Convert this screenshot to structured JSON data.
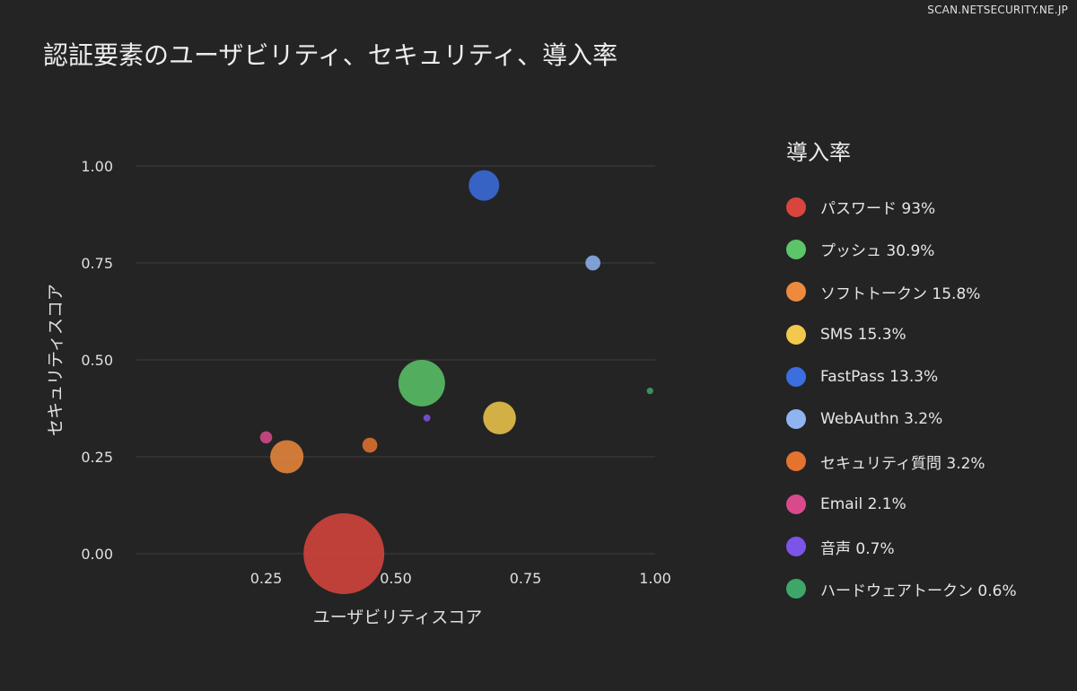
{
  "watermark": "SCAN.NETSECURITY.NE.JP",
  "chart_data": {
    "type": "scatter",
    "title": "認証要素のユーザビリティ、セキュリティ、導入率",
    "xlabel": "ユーザビリティスコア",
    "ylabel": "セキュリティスコア",
    "xlim": [
      0,
      1.0
    ],
    "ylim": [
      0,
      1.1
    ],
    "xticks": [
      "0.25",
      "0.50",
      "0.75",
      "1.00"
    ],
    "xtick_values": [
      0.25,
      0.5,
      0.75,
      1.0
    ],
    "yticks": [
      "0.00",
      "0.25",
      "0.50",
      "0.75",
      "1.00"
    ],
    "ytick_values": [
      0,
      0.25,
      0.5,
      0.75,
      1.0
    ],
    "grid": "horizontal",
    "legend_title": "導入率",
    "legend_position": "right",
    "series": [
      {
        "name": "パスワード",
        "label": "パスワード 93%",
        "adoption": 93,
        "x": 0.4,
        "y": 0.0,
        "color": "#d9453d"
      },
      {
        "name": "プッシュ",
        "label": "プッシュ 30.9%",
        "adoption": 30.9,
        "x": 0.55,
        "y": 0.44,
        "color": "#5cc569"
      },
      {
        "name": "ソフトトークン",
        "label": "ソフトトークン 15.8%",
        "adoption": 15.8,
        "x": 0.29,
        "y": 0.25,
        "color": "#ed8a3d"
      },
      {
        "name": "SMS",
        "label": "SMS 15.3%",
        "adoption": 15.3,
        "x": 0.7,
        "y": 0.35,
        "color": "#f2c94c"
      },
      {
        "name": "FastPass",
        "label": "FastPass 13.3%",
        "adoption": 13.3,
        "x": 0.67,
        "y": 0.95,
        "color": "#3b6fe0"
      },
      {
        "name": "WebAuthn",
        "label": "WebAuthn 3.2%",
        "adoption": 3.2,
        "x": 0.88,
        "y": 0.75,
        "color": "#8fb4f2"
      },
      {
        "name": "セキュリティ質問",
        "label": "セキュリティ質問 3.2%",
        "adoption": 3.2,
        "x": 0.45,
        "y": 0.28,
        "color": "#e5732f"
      },
      {
        "name": "Email",
        "label": "Email 2.1%",
        "adoption": 2.1,
        "x": 0.25,
        "y": 0.3,
        "color": "#d94a8c"
      },
      {
        "name": "音声",
        "label": "音声 0.7%",
        "adoption": 0.7,
        "x": 0.56,
        "y": 0.35,
        "color": "#7a55e8"
      },
      {
        "name": "ハードウェアトークン",
        "label": "ハードウェアトークン 0.6%",
        "adoption": 0.6,
        "x": 0.99,
        "y": 0.42,
        "color": "#3fa66a"
      }
    ]
  }
}
